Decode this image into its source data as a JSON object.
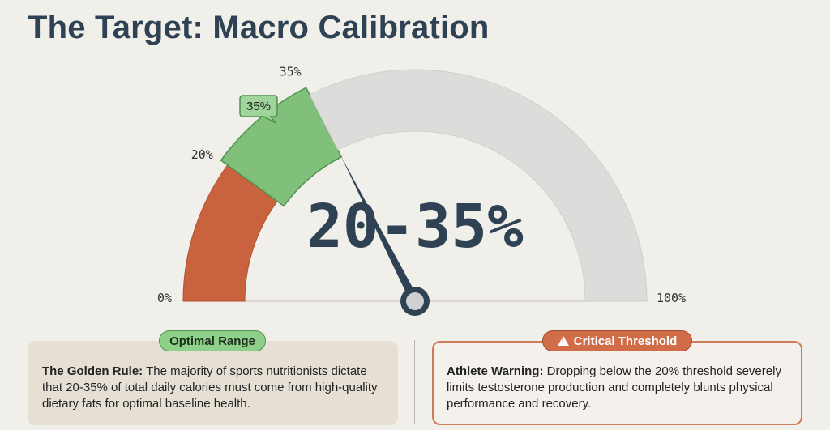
{
  "page": {
    "title": "The Target: Macro Calibration"
  },
  "chart_data": {
    "type": "gauge",
    "min": 0,
    "max": 100,
    "segments": [
      {
        "from": 0,
        "to": 20,
        "color": "#c9623f"
      },
      {
        "from": 20,
        "to": 35,
        "color": "#80c07a"
      },
      {
        "from": 35,
        "to": 100,
        "color": "#dcdcda"
      }
    ],
    "needle_value": 35,
    "center_value": "20-35%",
    "tick_labels": [
      {
        "value": 0,
        "label": "0%"
      },
      {
        "value": 20,
        "label": "20%"
      },
      {
        "value": 35,
        "label": "35%"
      },
      {
        "value": 100,
        "label": "100%"
      }
    ],
    "callout": {
      "value": 35,
      "label": "35%"
    },
    "colors": {
      "low": "#c9623f",
      "optimal": "#80c07a",
      "remaining": "#dcdcda",
      "needle": "#2f4254"
    }
  },
  "cards": {
    "optimal": {
      "badge": "Optimal Range",
      "lead": "The Golden Rule:",
      "text": " The majority of sports nutritionists dictate that 20-35% of total daily calories must come from high-quality dietary fats for optimal baseline health."
    },
    "critical": {
      "badge": "Critical Threshold",
      "badge_icon": "warning-icon",
      "lead": "Athlete Warning:",
      "text": " Dropping below the 20% threshold severely limits testosterone production and completely blunts physical performance and recovery."
    }
  }
}
